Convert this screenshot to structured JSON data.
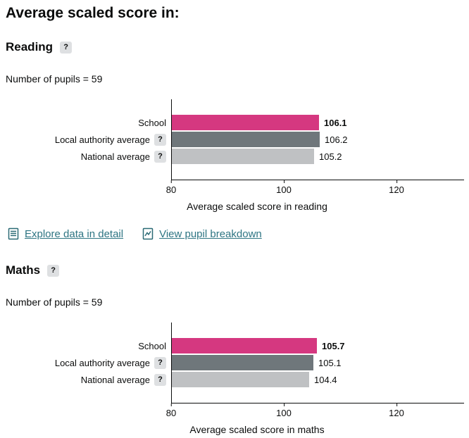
{
  "page": {
    "title": "Average scaled score in:"
  },
  "help_glyph": "?",
  "colors": {
    "text": "#0b0c0c",
    "link": "#2e7583",
    "school_bar": "#d53880",
    "local_authority_bar": "#6f777b",
    "national_bar": "#bfc1c3",
    "help_badge_bg": "#dee0e2",
    "axis": "#0b0c0c"
  },
  "sections": [
    {
      "heading": "Reading",
      "pupils_label": "Number of pupils = 59",
      "links": [
        {
          "label": "Explore data in detail",
          "icon": "document-lines-icon"
        },
        {
          "label": "View pupil breakdown",
          "icon": "document-chart-icon"
        }
      ]
    },
    {
      "heading": "Maths",
      "pupils_label": "Number of pupils = 59",
      "links": []
    }
  ],
  "chart_data": [
    {
      "type": "bar",
      "orientation": "horizontal",
      "title": "",
      "categories": [
        "School",
        "Local authority average",
        "National average"
      ],
      "values": [
        106.1,
        106.2,
        105.2
      ],
      "colors": [
        "#d53880",
        "#6f777b",
        "#bfc1c3"
      ],
      "category_has_help_icon": [
        false,
        true,
        true
      ],
      "xlabel": "Average scaled score in reading",
      "xlim": [
        80,
        132
      ],
      "xticks": [
        80,
        100,
        120
      ],
      "grid": false,
      "legend": "none"
    },
    {
      "type": "bar",
      "orientation": "horizontal",
      "title": "",
      "categories": [
        "School",
        "Local authority average",
        "National average"
      ],
      "values": [
        105.7,
        105.1,
        104.4
      ],
      "colors": [
        "#d53880",
        "#6f777b",
        "#bfc1c3"
      ],
      "category_has_help_icon": [
        false,
        true,
        true
      ],
      "xlabel": "Average scaled score in maths",
      "xlim": [
        80,
        132
      ],
      "xticks": [
        80,
        100,
        120
      ],
      "grid": false,
      "legend": "none"
    }
  ]
}
